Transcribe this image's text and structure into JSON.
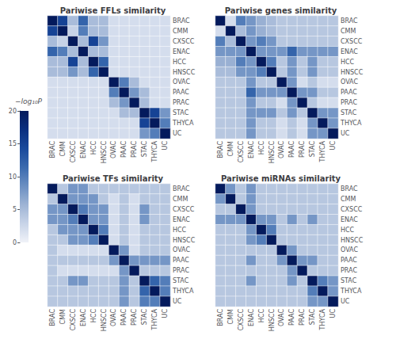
{
  "chart_data": {
    "type": "heatmap",
    "categories": [
      "BRAC",
      "CMM",
      "CXSCC",
      "ENAC",
      "HCC",
      "HNSCC",
      "OVAC",
      "PAAC",
      "PRAC",
      "STAC",
      "THYCA",
      "UC"
    ],
    "panels": [
      {
        "title": "Pariwise FFLs similarity",
        "values": [
          [
            20,
            15,
            5,
            12,
            5,
            5,
            2,
            2,
            2,
            2,
            2,
            2
          ],
          [
            15,
            20,
            3,
            10,
            5,
            5,
            2,
            2,
            2,
            2,
            2,
            2
          ],
          [
            5,
            3,
            20,
            5,
            15,
            8,
            2,
            2,
            2,
            2,
            2,
            2
          ],
          [
            12,
            10,
            5,
            20,
            5,
            5,
            2,
            2,
            2,
            2,
            2,
            2
          ],
          [
            5,
            5,
            15,
            5,
            20,
            12,
            2,
            2,
            2,
            2,
            2,
            2
          ],
          [
            5,
            5,
            8,
            5,
            12,
            20,
            2,
            2,
            2,
            2,
            2,
            2
          ],
          [
            2,
            2,
            2,
            2,
            2,
            2,
            20,
            10,
            5,
            2,
            2,
            2
          ],
          [
            2,
            2,
            2,
            2,
            2,
            2,
            10,
            20,
            8,
            5,
            2,
            2
          ],
          [
            2,
            2,
            2,
            2,
            2,
            2,
            5,
            8,
            20,
            5,
            2,
            2
          ],
          [
            2,
            2,
            2,
            2,
            2,
            2,
            2,
            5,
            5,
            20,
            15,
            8
          ],
          [
            2,
            2,
            2,
            2,
            2,
            2,
            2,
            2,
            2,
            15,
            20,
            10
          ],
          [
            2,
            2,
            2,
            2,
            2,
            2,
            2,
            2,
            2,
            8,
            10,
            20
          ]
        ]
      },
      {
        "title": "Pariwise genes similarity",
        "values": [
          [
            20,
            2,
            10,
            8,
            6,
            5,
            4,
            4,
            4,
            4,
            4,
            4
          ],
          [
            2,
            20,
            5,
            8,
            6,
            5,
            4,
            4,
            4,
            4,
            4,
            4
          ],
          [
            10,
            5,
            20,
            8,
            10,
            8,
            4,
            4,
            4,
            4,
            4,
            4
          ],
          [
            8,
            8,
            8,
            20,
            8,
            8,
            8,
            12,
            8,
            8,
            8,
            8
          ],
          [
            6,
            6,
            10,
            8,
            20,
            10,
            4,
            8,
            4,
            8,
            4,
            4
          ],
          [
            5,
            5,
            8,
            8,
            10,
            20,
            4,
            8,
            4,
            8,
            4,
            4
          ],
          [
            4,
            4,
            4,
            8,
            4,
            4,
            20,
            8,
            2,
            4,
            2,
            2
          ],
          [
            4,
            4,
            4,
            12,
            8,
            8,
            8,
            20,
            8,
            8,
            4,
            4
          ],
          [
            4,
            4,
            4,
            8,
            4,
            4,
            2,
            8,
            20,
            4,
            2,
            2
          ],
          [
            4,
            4,
            4,
            8,
            8,
            8,
            4,
            8,
            4,
            20,
            8,
            8
          ],
          [
            4,
            4,
            4,
            8,
            4,
            4,
            2,
            4,
            2,
            8,
            20,
            8
          ],
          [
            4,
            4,
            4,
            8,
            4,
            4,
            2,
            4,
            2,
            8,
            8,
            20
          ]
        ]
      },
      {
        "title": "Pariwise TFs similarity",
        "values": [
          [
            20,
            4,
            8,
            8,
            4,
            4,
            4,
            4,
            4,
            4,
            4,
            4
          ],
          [
            4,
            20,
            8,
            8,
            8,
            4,
            2,
            4,
            2,
            4,
            4,
            4
          ],
          [
            8,
            8,
            20,
            10,
            8,
            8,
            2,
            4,
            2,
            8,
            4,
            4
          ],
          [
            8,
            8,
            10,
            20,
            8,
            8,
            2,
            4,
            2,
            8,
            4,
            4
          ],
          [
            4,
            8,
            8,
            8,
            20,
            10,
            2,
            4,
            2,
            4,
            4,
            4
          ],
          [
            4,
            4,
            8,
            8,
            10,
            20,
            2,
            4,
            2,
            4,
            4,
            4
          ],
          [
            4,
            2,
            2,
            2,
            2,
            2,
            20,
            8,
            2,
            4,
            4,
            4
          ],
          [
            4,
            4,
            4,
            4,
            4,
            4,
            8,
            20,
            8,
            8,
            8,
            8
          ],
          [
            4,
            2,
            2,
            2,
            2,
            2,
            2,
            8,
            20,
            4,
            4,
            4
          ],
          [
            4,
            4,
            8,
            8,
            4,
            4,
            4,
            8,
            4,
            20,
            12,
            10
          ],
          [
            4,
            4,
            4,
            4,
            4,
            4,
            4,
            8,
            4,
            12,
            20,
            10
          ],
          [
            4,
            4,
            4,
            4,
            4,
            4,
            4,
            8,
            4,
            10,
            10,
            20
          ]
        ]
      },
      {
        "title": "Pariwise miRNAs similarity",
        "values": [
          [
            20,
            8,
            4,
            8,
            4,
            4,
            4,
            4,
            4,
            4,
            4,
            4
          ],
          [
            8,
            20,
            4,
            8,
            4,
            4,
            4,
            4,
            4,
            4,
            4,
            4
          ],
          [
            4,
            4,
            20,
            8,
            4,
            4,
            4,
            4,
            4,
            4,
            4,
            4
          ],
          [
            8,
            8,
            8,
            20,
            8,
            8,
            4,
            8,
            4,
            8,
            4,
            4
          ],
          [
            4,
            4,
            4,
            8,
            20,
            10,
            4,
            4,
            4,
            4,
            4,
            4
          ],
          [
            4,
            4,
            4,
            8,
            10,
            20,
            4,
            4,
            4,
            4,
            4,
            4
          ],
          [
            4,
            4,
            4,
            4,
            4,
            4,
            20,
            8,
            4,
            4,
            4,
            4
          ],
          [
            4,
            4,
            4,
            8,
            4,
            4,
            8,
            20,
            8,
            8,
            4,
            4
          ],
          [
            4,
            4,
            4,
            4,
            4,
            4,
            4,
            8,
            20,
            4,
            4,
            4
          ],
          [
            4,
            4,
            4,
            8,
            4,
            4,
            4,
            8,
            4,
            20,
            10,
            8
          ],
          [
            4,
            4,
            4,
            4,
            4,
            4,
            4,
            4,
            4,
            10,
            20,
            8
          ],
          [
            4,
            4,
            4,
            4,
            4,
            4,
            4,
            4,
            4,
            8,
            8,
            20
          ]
        ]
      }
    ],
    "colorbar": {
      "label": "−log₁₀P",
      "range": [
        0,
        20
      ],
      "ticks": [
        0,
        5,
        10,
        15,
        20
      ],
      "colors": [
        "#f0f2f8",
        "#c8d4e8",
        "#9eb4d5",
        "#6b8fc2",
        "#3a6aaf",
        "#1a4a9c",
        "#0a2f80",
        "#041a5c"
      ]
    }
  }
}
